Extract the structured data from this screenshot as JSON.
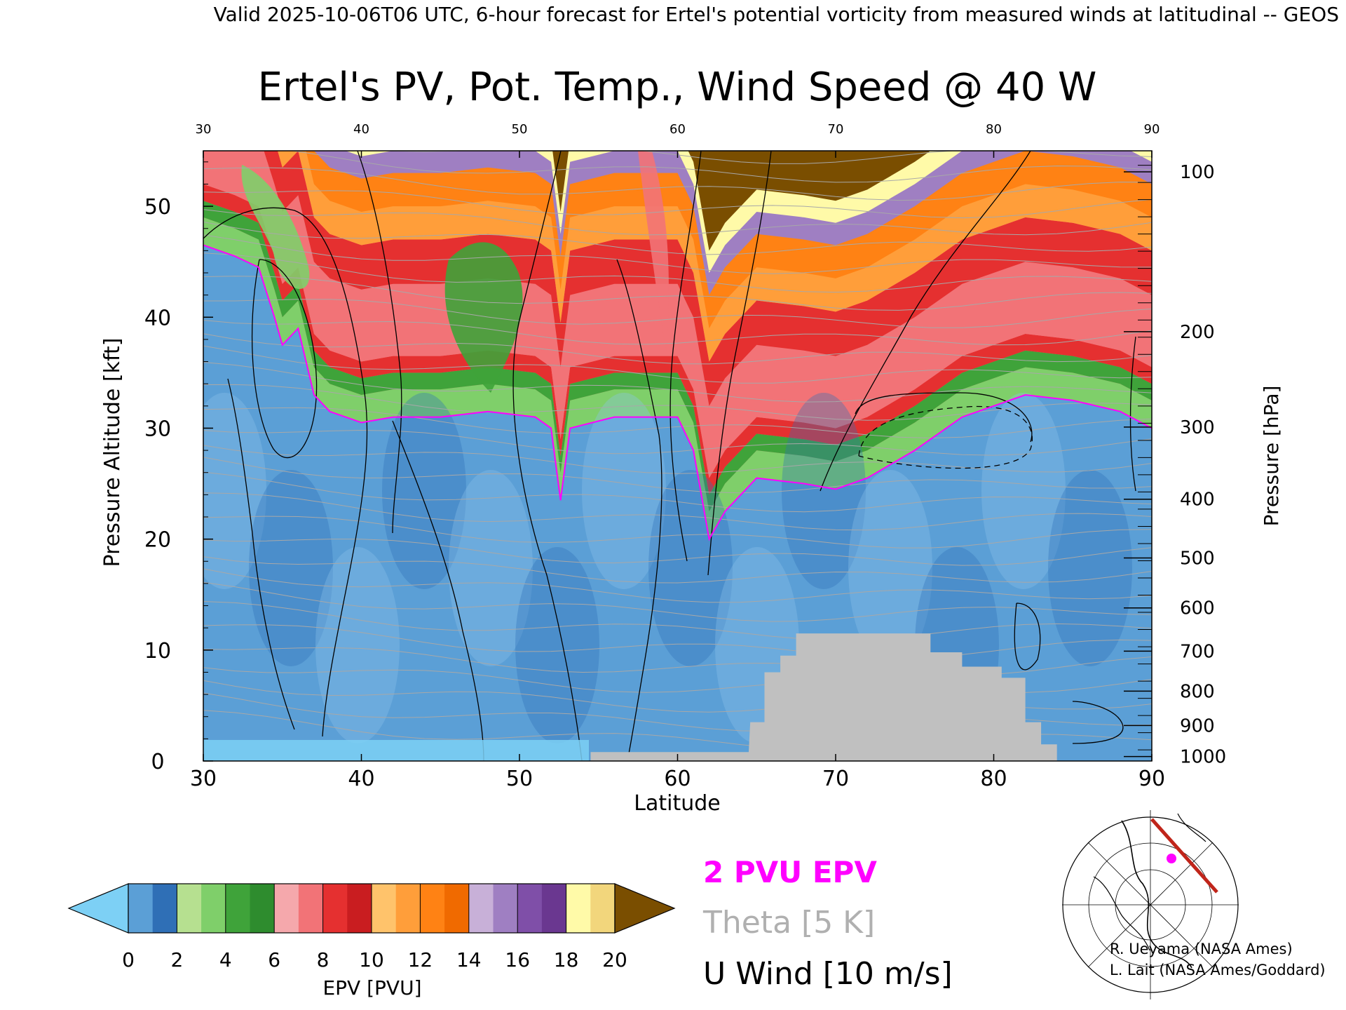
{
  "header": {
    "valid_line": "Valid 2025-10-06T06 UTC, 6-hour forecast for Ertel's potential vorticity from measured winds at latitudinal -- GEOS"
  },
  "chart_data": {
    "type": "heatmap",
    "title": "Ertel's PV, Pot. Temp., Wind Speed @ 40 W",
    "xlabel": "Latitude",
    "ylabel_left": "Pressure Altitude [kft]",
    "ylabel_right": "Pressure [hPa]",
    "xlim": [
      30,
      90
    ],
    "ylim": [
      0,
      55
    ],
    "x_ticks": [
      "30",
      "40",
      "50",
      "60",
      "70",
      "80",
      "90"
    ],
    "y_ticks": [
      "0",
      "10",
      "20",
      "30",
      "40",
      "50"
    ],
    "pressure_ticks": [
      {
        "label": "1000",
        "kft": 0.4
      },
      {
        "label": "900",
        "kft": 3.2
      },
      {
        "label": "800",
        "kft": 6.3
      },
      {
        "label": "700",
        "kft": 9.9
      },
      {
        "label": "600",
        "kft": 13.8
      },
      {
        "label": "500",
        "kft": 18.3
      },
      {
        "label": "400",
        "kft": 23.6
      },
      {
        "label": "300",
        "kft": 30.1
      },
      {
        "label": "200",
        "kft": 38.7
      },
      {
        "label": "100",
        "kft": 53.1
      }
    ],
    "tropopause_2pvu_kft": [
      [
        30,
        46.5
      ],
      [
        32,
        45.5
      ],
      [
        33.5,
        44.5
      ],
      [
        34.5,
        40
      ],
      [
        35,
        37.5
      ],
      [
        36,
        39
      ],
      [
        37,
        33
      ],
      [
        38,
        31.5
      ],
      [
        40,
        30.5
      ],
      [
        42,
        31
      ],
      [
        45,
        31
      ],
      [
        48,
        31.5
      ],
      [
        51,
        31
      ],
      [
        52,
        30
      ],
      [
        52.6,
        23.5
      ],
      [
        53.2,
        30
      ],
      [
        56,
        31
      ],
      [
        60,
        31
      ],
      [
        61,
        28
      ],
      [
        62,
        20
      ],
      [
        63,
        22.5
      ],
      [
        65,
        25.5
      ],
      [
        68,
        25
      ],
      [
        70,
        24.5
      ],
      [
        72,
        25.5
      ],
      [
        75,
        28
      ],
      [
        78,
        31
      ],
      [
        80,
        32
      ],
      [
        82,
        33
      ],
      [
        85,
        32.5
      ],
      [
        88,
        31.5
      ],
      [
        90,
        30
      ]
    ],
    "terrain_kft": [
      [
        54.5,
        0.8
      ],
      [
        64.5,
        0.8
      ],
      [
        64.6,
        3.5
      ],
      [
        65.5,
        3.5
      ],
      [
        65.5,
        8
      ],
      [
        66.5,
        8
      ],
      [
        66.5,
        9.5
      ],
      [
        67.5,
        9.5
      ],
      [
        67.5,
        11.5
      ],
      [
        76,
        11.5
      ],
      [
        76,
        9.8
      ],
      [
        78,
        9.8
      ],
      [
        78,
        8.5
      ],
      [
        80.5,
        8.5
      ],
      [
        80.5,
        7.5
      ],
      [
        82,
        7.5
      ],
      [
        82,
        3.5
      ],
      [
        83,
        3.5
      ],
      [
        83,
        1.5
      ],
      [
        84,
        1.5
      ],
      [
        84,
        0
      ]
    ],
    "wind_contours_m_s": [
      "-10",
      "0",
      "10",
      "20",
      "30",
      "40",
      "50"
    ],
    "legend": {
      "line1": "2 PVU EPV",
      "line2": "Theta [5 K]",
      "line3": "U Wind [10 m/s]"
    },
    "colorbar": {
      "label": "EPV [PVU]",
      "tick_labels": [
        "0",
        "2",
        "4",
        "6",
        "8",
        "10",
        "12",
        "14",
        "16",
        "18",
        "20"
      ],
      "colors": [
        "#7dd0f5",
        "#5b9fd6",
        "#2f6fb6",
        "#b6e090",
        "#7fcf6a",
        "#3fa33a",
        "#2e8c2e",
        "#f5a8ac",
        "#f27377",
        "#e53030",
        "#c91d20",
        "#ffc36b",
        "#ff9e3a",
        "#ff8214",
        "#f06a00",
        "#c8b0d8",
        "#9f7fc2",
        "#7f4fa8",
        "#6a3790",
        "#fffaa8",
        "#f2d67c",
        "#7a4e00"
      ]
    }
  },
  "colors": {
    "pv_below_2": "#5b9fd6",
    "pv_2_6": "#7fcf6a",
    "pv_6_10": "#f27377",
    "pv_10_14": "#ff9e3a",
    "pv_14_18": "#9f7fc2",
    "pv_18_20": "#fffaa8",
    "pv_above_20": "#7a4e00",
    "tropopause_line": "#ff00ff",
    "terrain": "#c0c0c0",
    "legend_pvu": "#ff00ff",
    "legend_theta": "#b0b0b0"
  },
  "credits": {
    "line1": "R. Ueyama (NASA Ames)",
    "line2": "L. Lait (NASA Ames/Goddard)"
  },
  "inset_map": {
    "icon": "polar-map-icon"
  }
}
